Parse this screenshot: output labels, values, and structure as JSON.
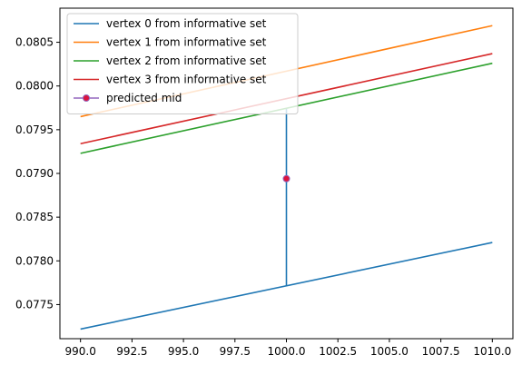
{
  "chart_data": {
    "type": "line",
    "title": "",
    "xlabel": "",
    "ylabel": "",
    "xlim": [
      989.0,
      1011.0
    ],
    "ylim": [
      0.07711,
      0.08089
    ],
    "xticks": [
      990.0,
      992.5,
      995.0,
      997.5,
      1000.0,
      1002.5,
      1005.0,
      1007.5,
      1010.0
    ],
    "xtick_labels": [
      "990.0",
      "992.5",
      "995.0",
      "997.5",
      "1000.0",
      "1002.5",
      "1005.0",
      "1007.5",
      "1010.0"
    ],
    "yticks": [
      0.0775,
      0.078,
      0.0785,
      0.079,
      0.0795,
      0.08,
      0.0805
    ],
    "ytick_labels": [
      "0.0775",
      "0.0780",
      "0.0785",
      "0.0790",
      "0.0795",
      "0.0800",
      "0.0805"
    ],
    "grid": false,
    "legend_position": "top-left",
    "series": [
      {
        "name": "vertex 0 from informative set",
        "color": "#1f77b4",
        "x": [
          990,
          1010
        ],
        "y": [
          0.07722,
          0.07821
        ]
      },
      {
        "name": "vertex 1 from informative set",
        "color": "#ff7f0e",
        "x": [
          990,
          1010
        ],
        "y": [
          0.07965,
          0.08069
        ]
      },
      {
        "name": "vertex 2 from informative set",
        "color": "#2ca02c",
        "x": [
          990,
          1010
        ],
        "y": [
          0.07923,
          0.08026
        ]
      },
      {
        "name": "vertex 3 from informative set",
        "color": "#d62728",
        "x": [
          990,
          1010
        ],
        "y": [
          0.07934,
          0.08037
        ]
      },
      {
        "name": "predicted mid",
        "color": "#9467bd",
        "marker_color": "#dc143c",
        "marker": "circle",
        "x": [
          1000
        ],
        "y": [
          0.07894
        ]
      }
    ],
    "connector": {
      "color": "#1f77b4",
      "x": 1000,
      "y_from": 0.07771,
      "y_to": 0.07974
    }
  }
}
